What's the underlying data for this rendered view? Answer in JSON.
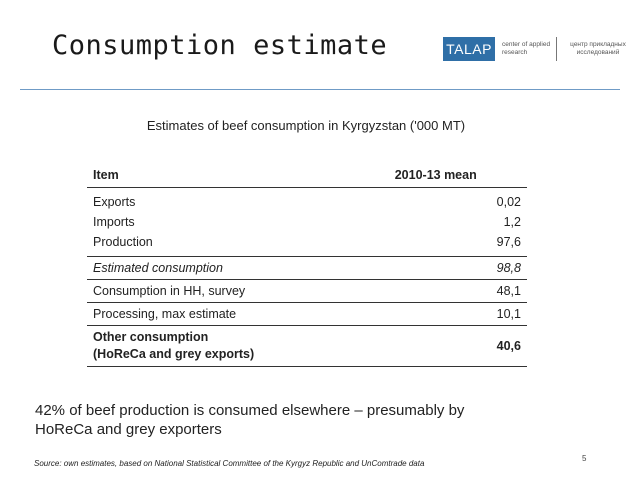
{
  "header": {
    "title": "Consumption estimate",
    "logo_text": "TALAP",
    "logo_en": "center of applied research",
    "logo_ru": "центр прикладных исследований"
  },
  "subtitle": "Estimates of beef consumption in Kyrgyzstan ('000 MT)",
  "table": {
    "col_item": "Item",
    "col_value": "2010-13 mean",
    "rows": [
      {
        "label": "Exports",
        "value": "0,02"
      },
      {
        "label": "Imports",
        "value": "1,2"
      },
      {
        "label": "Production",
        "value": "97,6"
      },
      {
        "label": "Estimated consumption",
        "value": "98,8"
      },
      {
        "label": "Consumption in HH, survey",
        "value": "48,1"
      },
      {
        "label": "Processing, max estimate",
        "value": "10,1"
      },
      {
        "label": "Other consumption",
        "label2": "(HoReCa and grey exports)",
        "value": "40,6"
      }
    ]
  },
  "note": "42% of beef production is consumed elsewhere – presumably by HoReCa and grey exporters",
  "source": "Source: own estimates, based on National Statistical Committee of the Kyrgyz Republic and UnComtrade data",
  "page_number": "5"
}
